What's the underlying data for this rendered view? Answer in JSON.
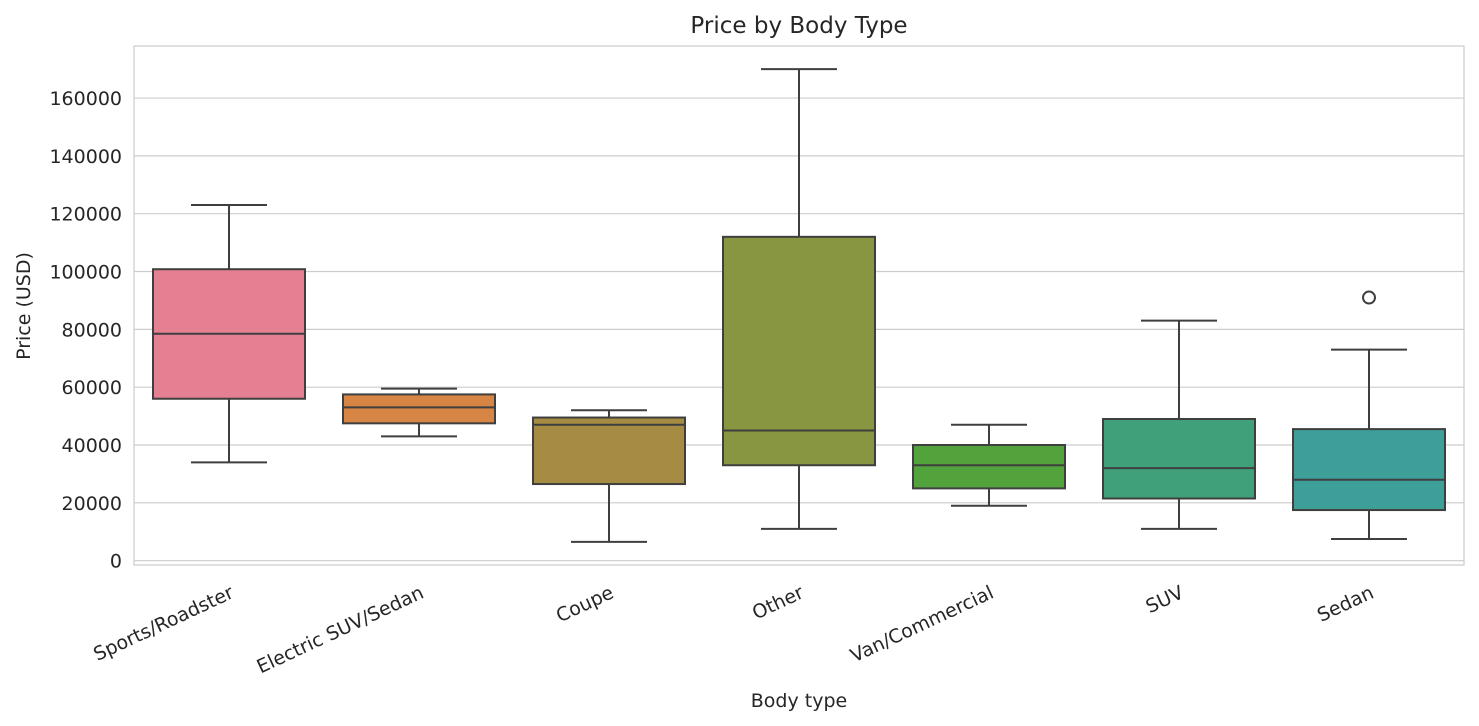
{
  "chart_data": {
    "type": "box",
    "title": "Price by Body Type",
    "xlabel": "Body type",
    "ylabel": "Price (USD)",
    "ylim": [
      -1500,
      178000
    ],
    "yticks": [
      0,
      20000,
      40000,
      60000,
      80000,
      100000,
      120000,
      140000,
      160000
    ],
    "ytick_labels": [
      "0",
      "20000",
      "40000",
      "60000",
      "80000",
      "100000",
      "120000",
      "140000",
      "160000"
    ],
    "grid": true,
    "categories": [
      "Sports/Roadster",
      "Electric SUV/Sedan",
      "Coupe",
      "Other",
      "Van/Commercial",
      "SUV",
      "Sedan"
    ],
    "colors": [
      "#e57f92",
      "#d68545",
      "#a68b42",
      "#899641",
      "#52a33c",
      "#3fa07a",
      "#3e9f98"
    ],
    "boxes": [
      {
        "category": "Sports/Roadster",
        "whisker_low": 34000,
        "q1": 56000,
        "median": 78500,
        "q3": 100800,
        "whisker_high": 123000,
        "outliers": []
      },
      {
        "category": "Electric SUV/Sedan",
        "whisker_low": 43000,
        "q1": 47500,
        "median": 53000,
        "q3": 57500,
        "whisker_high": 59500,
        "outliers": []
      },
      {
        "category": "Coupe",
        "whisker_low": 6500,
        "q1": 26500,
        "median": 47000,
        "q3": 49500,
        "whisker_high": 52000,
        "outliers": []
      },
      {
        "category": "Other",
        "whisker_low": 11000,
        "q1": 33000,
        "median": 45000,
        "q3": 112000,
        "whisker_high": 170000,
        "outliers": []
      },
      {
        "category": "Van/Commercial",
        "whisker_low": 19000,
        "q1": 25000,
        "median": 33000,
        "q3": 40000,
        "whisker_high": 47000,
        "outliers": []
      },
      {
        "category": "SUV",
        "whisker_low": 11000,
        "q1": 21500,
        "median": 32000,
        "q3": 49000,
        "whisker_high": 83000,
        "outliers": []
      },
      {
        "category": "Sedan",
        "whisker_low": 7500,
        "q1": 17500,
        "median": 28000,
        "q3": 45500,
        "whisker_high": 73000,
        "outliers": [
          91000
        ]
      }
    ]
  }
}
